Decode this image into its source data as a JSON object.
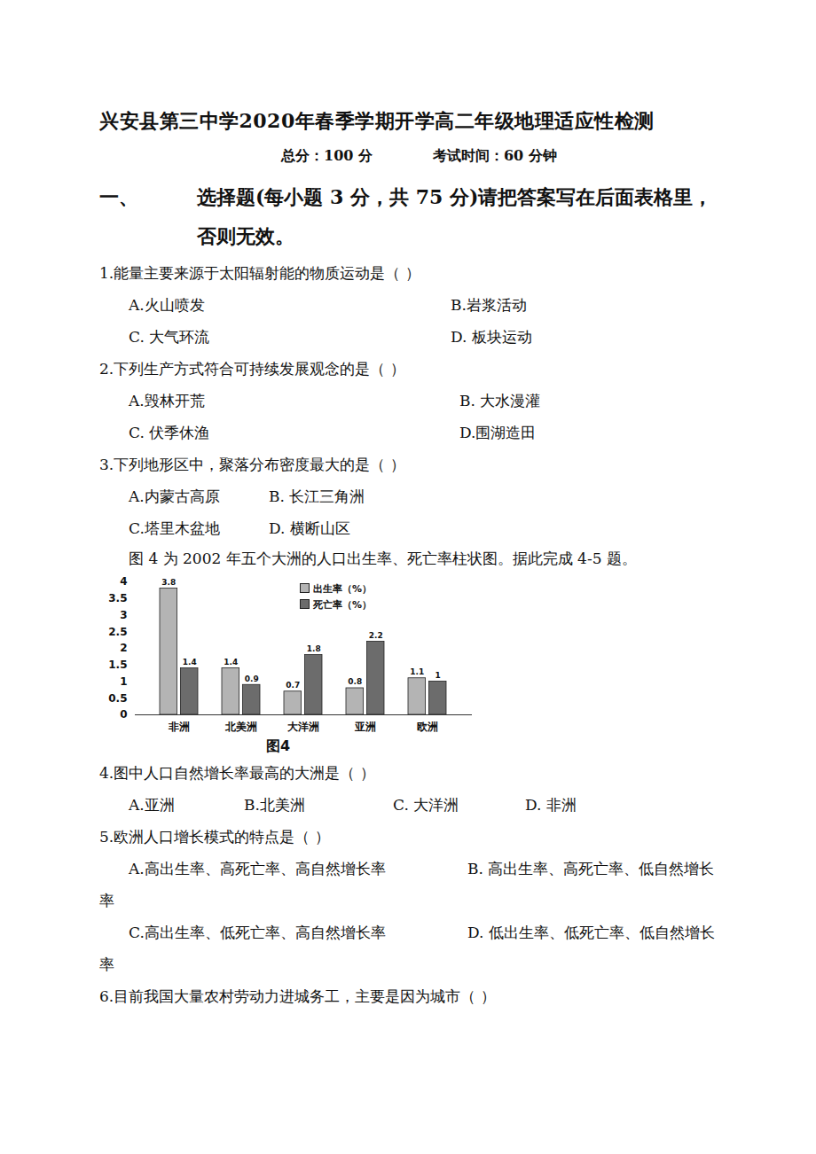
{
  "header": {
    "title": "兴安县第三中学2020年春季学期开学高二年级地理适应性检测",
    "score": "总分：100 分",
    "time": "考试时间：60 分钟"
  },
  "section": {
    "number": "一、",
    "title": "选择题(每小题 3 分，共 75 分)请把答案写在后面表格里，否则无效。"
  },
  "questions_before": [
    {
      "stem": "1.能量主要来源于太阳辐射能的物质运动是（ ）",
      "option_rows": [
        [
          "A.火山喷发",
          "B.岩浆活动"
        ],
        [
          "C. 大气环流",
          "D. 板块运动"
        ]
      ]
    },
    {
      "stem": "2.下列生产方式符合可持续发展观念的是（   ）",
      "option_rows": [
        [
          "A.毁林开荒",
          "B.  大水漫灌"
        ],
        [
          "C. 伏季休渔",
          "D.围湖造田"
        ]
      ]
    },
    {
      "stem": "3.下列地形区中，聚落分布密度最大的是（    ）",
      "option_rows": [
        [
          "A.内蒙古高原",
          "B. 长江三角洲"
        ],
        [
          "C.塔里木盆地",
          "D. 横断山区"
        ]
      ]
    }
  ],
  "figure_intro": "图 4 为 2002 年五个大洲的人口出生率、死亡率柱状图。据此完成 4-5 题。",
  "chart_data": {
    "type": "bar",
    "title": "图4",
    "categories": [
      "非洲",
      "北美洲",
      "大洋洲",
      "亚洲",
      "欧洲"
    ],
    "series": [
      {
        "name": "出生率（%）",
        "color": "#b4b4b4",
        "values": [
          3.8,
          1.4,
          0.7,
          0.8,
          1.1
        ]
      },
      {
        "name": "死亡率（%）",
        "color": "#6c6c6c",
        "values": [
          1.4,
          0.9,
          1.8,
          2.2,
          1
        ]
      }
    ],
    "ylim": [
      0,
      4
    ],
    "yticks": [
      0,
      0.5,
      1,
      1.5,
      2,
      2.5,
      3,
      3.5,
      4
    ],
    "grid": false,
    "legend": "top",
    "data_labels": true
  },
  "questions_after": [
    {
      "stem": "4.图中人口自然增长率最高的大洲是（ ）",
      "option_rows": [
        [
          "A.亚洲",
          "B.北美洲",
          "C. 大洋洲",
          "D. 非洲"
        ]
      ]
    },
    {
      "stem": "5.欧洲人口增长模式的特点是（ ）",
      "option_rows": [
        [
          "A.高出生率、高死亡率、高自然增长率",
          "B. 高出生率、高死亡率、低自然增长率"
        ],
        [
          "C.高出生率、低死亡率、高自然增长率",
          "D. 低出生率、低死亡率、低自然增长率"
        ]
      ]
    },
    {
      "stem": "6.目前我国大量农村劳动力进城务工，主要是因为城市（   ）",
      "option_rows": []
    }
  ]
}
